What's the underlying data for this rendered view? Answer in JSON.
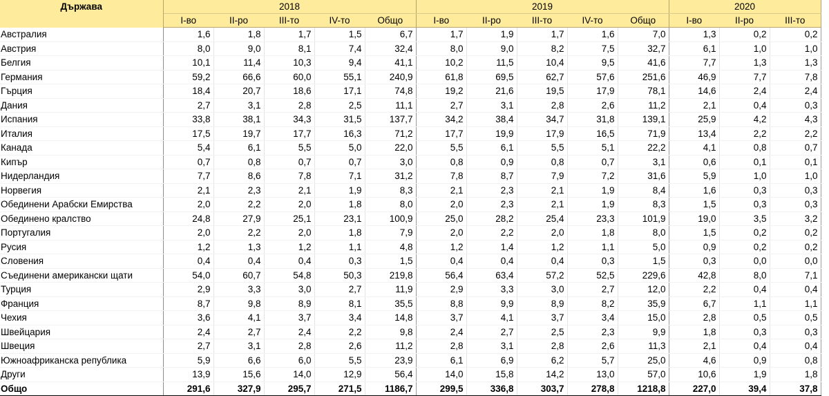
{
  "header": {
    "country_label": "Държава",
    "years": [
      "2018",
      "2019",
      "2020"
    ],
    "quarters": [
      [
        "I-во",
        "II-ро",
        "III-то",
        "IV-то",
        "Общо"
      ],
      [
        "I-во",
        "II-ро",
        "III-то",
        "IV-то",
        "Общо"
      ],
      [
        "I-во",
        "II-ро",
        "III-то"
      ]
    ]
  },
  "rows": [
    {
      "name": "Австралия",
      "values": [
        "1,6",
        "1,8",
        "1,7",
        "1,5",
        "6,7",
        "1,7",
        "1,9",
        "1,7",
        "1,6",
        "7,0",
        "1,3",
        "0,2",
        "0,2"
      ]
    },
    {
      "name": "Австрия",
      "values": [
        "8,0",
        "9,0",
        "8,1",
        "7,4",
        "32,4",
        "8,0",
        "9,0",
        "8,2",
        "7,5",
        "32,7",
        "6,1",
        "1,0",
        "1,0"
      ]
    },
    {
      "name": "Белгия",
      "values": [
        "10,1",
        "11,4",
        "10,3",
        "9,4",
        "41,1",
        "10,2",
        "11,5",
        "10,4",
        "9,5",
        "41,6",
        "7,7",
        "1,3",
        "1,3"
      ]
    },
    {
      "name": "Германия",
      "values": [
        "59,2",
        "66,6",
        "60,0",
        "55,1",
        "240,9",
        "61,8",
        "69,5",
        "62,7",
        "57,6",
        "251,6",
        "46,9",
        "7,7",
        "7,8"
      ]
    },
    {
      "name": "Гърция",
      "values": [
        "18,4",
        "20,7",
        "18,6",
        "17,1",
        "74,8",
        "19,2",
        "21,6",
        "19,5",
        "17,9",
        "78,1",
        "14,6",
        "2,4",
        "2,4"
      ]
    },
    {
      "name": "Дания",
      "values": [
        "2,7",
        "3,1",
        "2,8",
        "2,5",
        "11,1",
        "2,7",
        "3,1",
        "2,8",
        "2,6",
        "11,2",
        "2,1",
        "0,4",
        "0,3"
      ]
    },
    {
      "name": "Испания",
      "values": [
        "33,8",
        "38,1",
        "34,3",
        "31,5",
        "137,7",
        "34,2",
        "38,4",
        "34,7",
        "31,8",
        "139,1",
        "25,9",
        "4,2",
        "4,3"
      ]
    },
    {
      "name": "Италия",
      "values": [
        "17,5",
        "19,7",
        "17,7",
        "16,3",
        "71,2",
        "17,7",
        "19,9",
        "17,9",
        "16,5",
        "71,9",
        "13,4",
        "2,2",
        "2,2"
      ]
    },
    {
      "name": "Канада",
      "values": [
        "5,4",
        "6,1",
        "5,5",
        "5,0",
        "22,0",
        "5,5",
        "6,1",
        "5,5",
        "5,1",
        "22,2",
        "4,1",
        "0,8",
        "0,7"
      ]
    },
    {
      "name": "Кипър",
      "values": [
        "0,7",
        "0,8",
        "0,7",
        "0,7",
        "3,0",
        "0,8",
        "0,9",
        "0,8",
        "0,7",
        "3,1",
        "0,6",
        "0,1",
        "0,1"
      ]
    },
    {
      "name": "Нидерландия",
      "values": [
        "7,7",
        "8,6",
        "7,8",
        "7,1",
        "31,2",
        "7,8",
        "8,7",
        "7,9",
        "7,2",
        "31,6",
        "5,9",
        "1,0",
        "1,0"
      ]
    },
    {
      "name": "Норвегия",
      "values": [
        "2,1",
        "2,3",
        "2,1",
        "1,9",
        "8,3",
        "2,1",
        "2,3",
        "2,1",
        "1,9",
        "8,4",
        "1,6",
        "0,3",
        "0,3"
      ]
    },
    {
      "name": "Обединени Арабски Емирства",
      "values": [
        "2,0",
        "2,2",
        "2,0",
        "1,8",
        "8,0",
        "2,0",
        "2,3",
        "2,1",
        "1,9",
        "8,3",
        "1,5",
        "0,3",
        "0,3"
      ]
    },
    {
      "name": "Обединено кралство",
      "values": [
        "24,8",
        "27,9",
        "25,1",
        "23,1",
        "100,9",
        "25,0",
        "28,2",
        "25,4",
        "23,3",
        "101,9",
        "19,0",
        "3,5",
        "3,2"
      ]
    },
    {
      "name": "Португалия",
      "values": [
        "2,0",
        "2,2",
        "2,0",
        "1,8",
        "7,9",
        "2,0",
        "2,2",
        "2,0",
        "1,8",
        "8,0",
        "1,5",
        "0,2",
        "0,2"
      ]
    },
    {
      "name": "Русия",
      "values": [
        "1,2",
        "1,3",
        "1,2",
        "1,1",
        "4,8",
        "1,2",
        "1,4",
        "1,2",
        "1,1",
        "5,0",
        "0,9",
        "0,2",
        "0,2"
      ]
    },
    {
      "name": "Словения",
      "values": [
        "0,4",
        "0,4",
        "0,4",
        "0,3",
        "1,5",
        "0,4",
        "0,4",
        "0,4",
        "0,3",
        "1,5",
        "0,3",
        "0,0",
        "0,0"
      ]
    },
    {
      "name": "Съединени американски щати",
      "values": [
        "54,0",
        "60,7",
        "54,8",
        "50,3",
        "219,8",
        "56,4",
        "63,4",
        "57,2",
        "52,5",
        "229,6",
        "42,8",
        "8,0",
        "7,1"
      ]
    },
    {
      "name": "Турция",
      "values": [
        "2,9",
        "3,3",
        "3,0",
        "2,7",
        "11,9",
        "2,9",
        "3,3",
        "3,0",
        "2,7",
        "12,0",
        "2,2",
        "0,4",
        "0,4"
      ]
    },
    {
      "name": "Франция",
      "values": [
        "8,7",
        "9,8",
        "8,9",
        "8,1",
        "35,5",
        "8,8",
        "9,9",
        "8,9",
        "8,2",
        "35,9",
        "6,7",
        "1,1",
        "1,1"
      ]
    },
    {
      "name": "Чехия",
      "values": [
        "3,6",
        "4,1",
        "3,7",
        "3,4",
        "14,8",
        "3,7",
        "4,1",
        "3,7",
        "3,4",
        "15,0",
        "2,8",
        "0,5",
        "0,5"
      ]
    },
    {
      "name": "Швейцария",
      "values": [
        "2,4",
        "2,7",
        "2,4",
        "2,2",
        "9,8",
        "2,4",
        "2,7",
        "2,5",
        "2,3",
        "9,9",
        "1,8",
        "0,3",
        "0,3"
      ]
    },
    {
      "name": "Швеция",
      "values": [
        "2,7",
        "3,1",
        "2,8",
        "2,6",
        "11,2",
        "2,8",
        "3,1",
        "2,8",
        "2,6",
        "11,3",
        "2,1",
        "0,4",
        "0,4"
      ]
    },
    {
      "name": "Южноафриканска република",
      "values": [
        "5,9",
        "6,6",
        "6,0",
        "5,5",
        "23,9",
        "6,1",
        "6,9",
        "6,2",
        "5,7",
        "25,0",
        "4,6",
        "0,9",
        "0,8"
      ]
    },
    {
      "name": "Други",
      "values": [
        "13,9",
        "15,6",
        "14,0",
        "12,9",
        "56,4",
        "14,0",
        "15,8",
        "14,2",
        "13,0",
        "57,0",
        "10,6",
        "1,9",
        "1,8"
      ]
    }
  ],
  "total": {
    "name": "Общо",
    "values": [
      "291,6",
      "327,9",
      "295,7",
      "271,5",
      "1186,7",
      "299,5",
      "336,8",
      "303,7",
      "278,8",
      "1218,8",
      "227,0",
      "39,4",
      "37,8"
    ]
  }
}
